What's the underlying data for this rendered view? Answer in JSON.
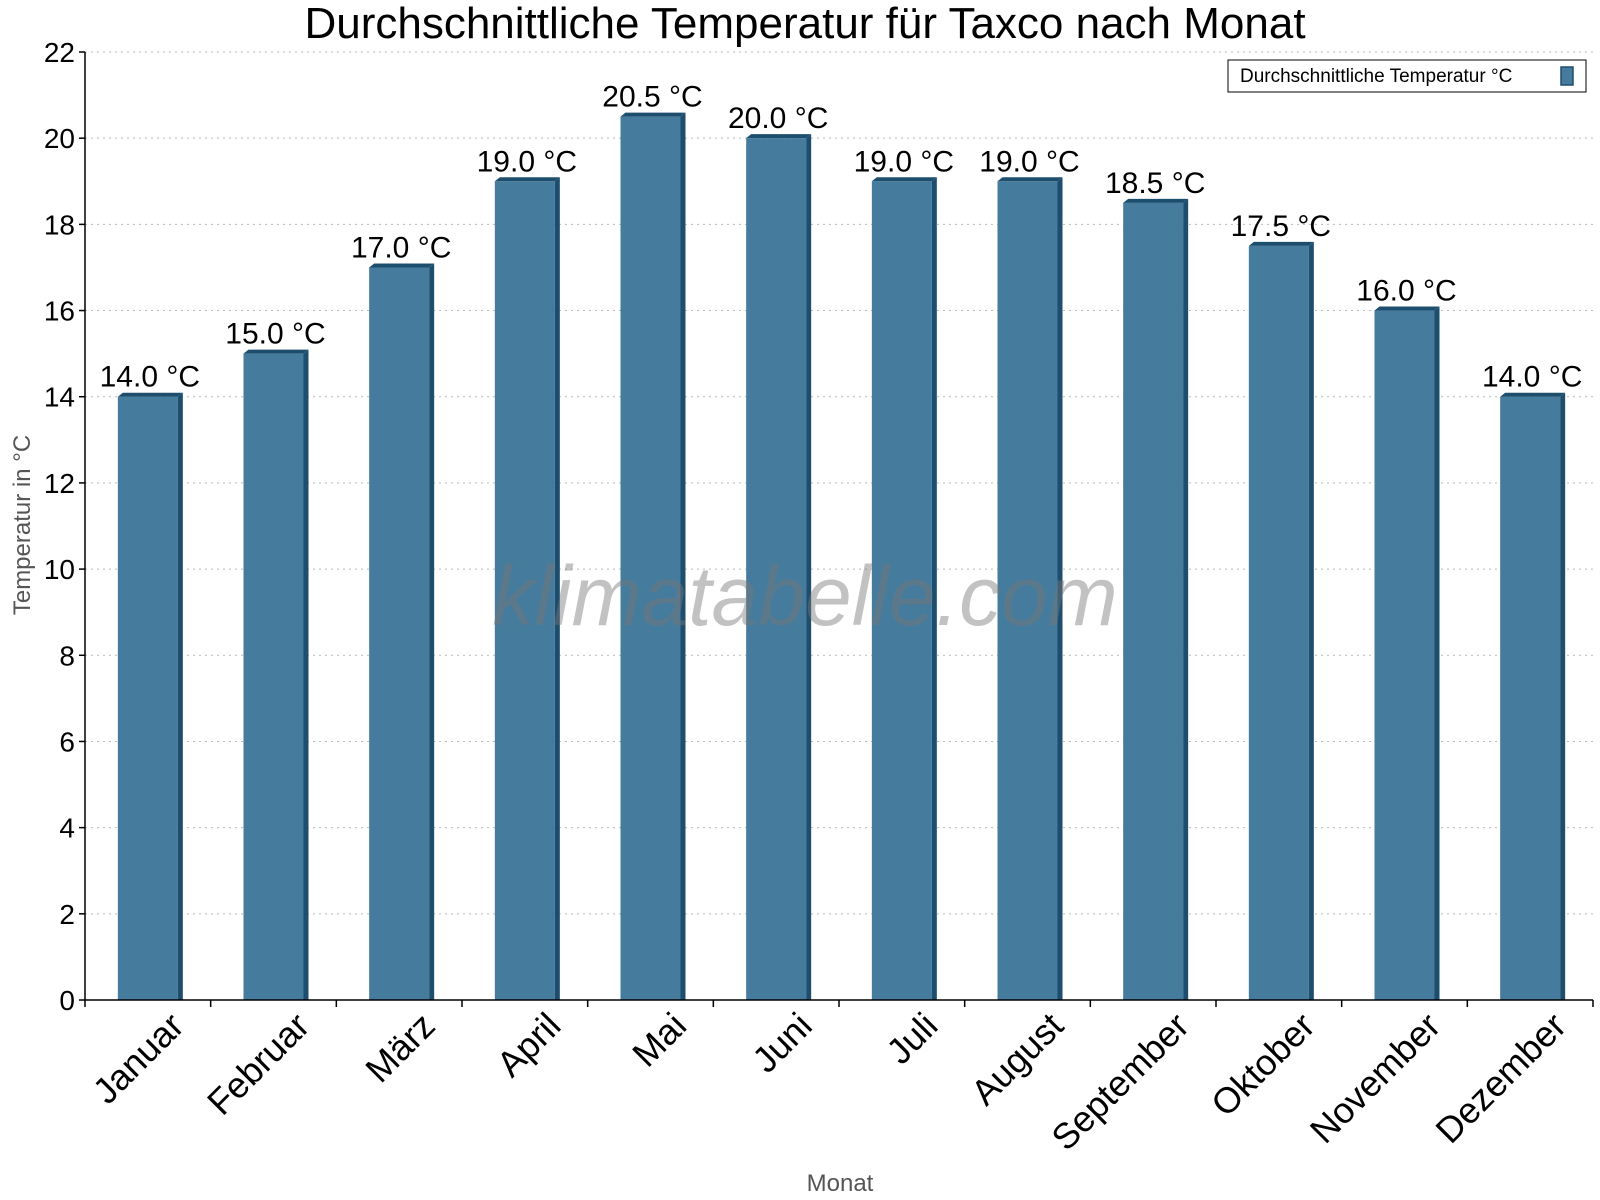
{
  "chart_data": {
    "type": "bar",
    "title": "Durchschnittliche Temperatur für Taxco nach Monat",
    "xlabel": "Monat",
    "ylabel": "Temperatur in °C",
    "categories": [
      "Januar",
      "Februar",
      "März",
      "April",
      "Mai",
      "Juni",
      "Juli",
      "August",
      "September",
      "Oktober",
      "November",
      "Dezember"
    ],
    "series": [
      {
        "name": "Durchschnittliche Temperatur °C",
        "values": [
          14.0,
          15.0,
          17.0,
          19.0,
          20.5,
          20.0,
          19.0,
          19.0,
          18.5,
          17.5,
          16.0,
          14.0
        ],
        "color": "#457b9d"
      }
    ],
    "data_labels": [
      "14.0 °C",
      "15.0 °C",
      "17.0 °C",
      "19.0 °C",
      "20.5 °C",
      "20.0 °C",
      "19.0 °C",
      "19.0 °C",
      "18.5 °C",
      "17.5 °C",
      "16.0 °C",
      "14.0 °C"
    ],
    "ylim": [
      0,
      22
    ],
    "yticks": [
      0,
      2,
      4,
      6,
      8,
      10,
      12,
      14,
      16,
      18,
      20,
      22
    ],
    "grid": true,
    "legend_position": "top-right",
    "watermark": "klimatabelle.com",
    "colors": {
      "bar": "#457b9d",
      "bar_shade": "#1d4e6e"
    }
  }
}
